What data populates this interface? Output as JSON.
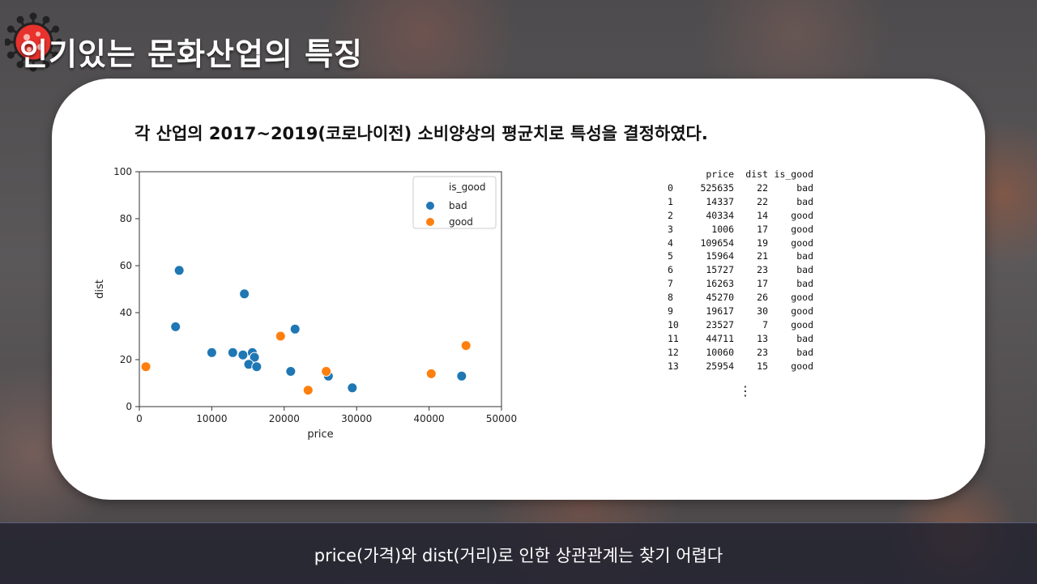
{
  "slide": {
    "title": "인기있는 문화산업의 특징",
    "heading": "각 산업의 2017~2019(코로나이전) 소비양상의 평균치로 특성을 결정하였다.",
    "footer": "price(가격)와 dist(거리)로 인한 상관관계는 찾기 어렵다",
    "logo_icon": "virus-icon"
  },
  "colors": {
    "bad": "#1f77b4",
    "good": "#ff7f0e",
    "virus": "#e8322e"
  },
  "chart_data": {
    "type": "scatter",
    "xlabel": "price",
    "ylabel": "dist",
    "xlim": [
      0,
      50000
    ],
    "ylim": [
      0,
      100
    ],
    "xticks": [
      0,
      10000,
      20000,
      30000,
      40000,
      50000
    ],
    "yticks": [
      0,
      20,
      40,
      60,
      80,
      100
    ],
    "grid": false,
    "legend": {
      "title": "is_good",
      "placement": "top-right"
    },
    "series": [
      {
        "name": "bad",
        "points": [
          [
            5500,
            58
          ],
          [
            14500,
            48
          ],
          [
            5000,
            34
          ],
          [
            21500,
            33
          ],
          [
            10000,
            23
          ],
          [
            12900,
            23
          ],
          [
            14300,
            22
          ],
          [
            15600,
            23
          ],
          [
            15900,
            21
          ],
          [
            15100,
            18
          ],
          [
            16200,
            17
          ],
          [
            20900,
            15
          ],
          [
            26100,
            13
          ],
          [
            29400,
            8
          ],
          [
            44500,
            13
          ]
        ]
      },
      {
        "name": "good",
        "points": [
          [
            900,
            17
          ],
          [
            19500,
            30
          ],
          [
            25800,
            15
          ],
          [
            23300,
            7
          ],
          [
            40300,
            14
          ],
          [
            45100,
            26
          ]
        ]
      }
    ]
  },
  "table": {
    "columns": [
      "",
      "price",
      "dist",
      "is_good"
    ],
    "rows": [
      [
        "0",
        "525635",
        "22",
        "bad"
      ],
      [
        "1",
        "14337",
        "22",
        "bad"
      ],
      [
        "2",
        "40334",
        "14",
        "good"
      ],
      [
        "3",
        "1006",
        "17",
        "good"
      ],
      [
        "4",
        "109654",
        "19",
        "good"
      ],
      [
        "5",
        "15964",
        "21",
        "bad"
      ],
      [
        "6",
        "15727",
        "23",
        "bad"
      ],
      [
        "7",
        "16263",
        "17",
        "bad"
      ],
      [
        "8",
        "45270",
        "26",
        "good"
      ],
      [
        "9",
        "19617",
        "30",
        "good"
      ],
      [
        "10",
        "23527",
        "7",
        "good"
      ],
      [
        "11",
        "44711",
        "13",
        "bad"
      ],
      [
        "12",
        "10060",
        "23",
        "bad"
      ],
      [
        "13",
        "25954",
        "15",
        "good"
      ]
    ],
    "ellipsis": "⋮"
  }
}
